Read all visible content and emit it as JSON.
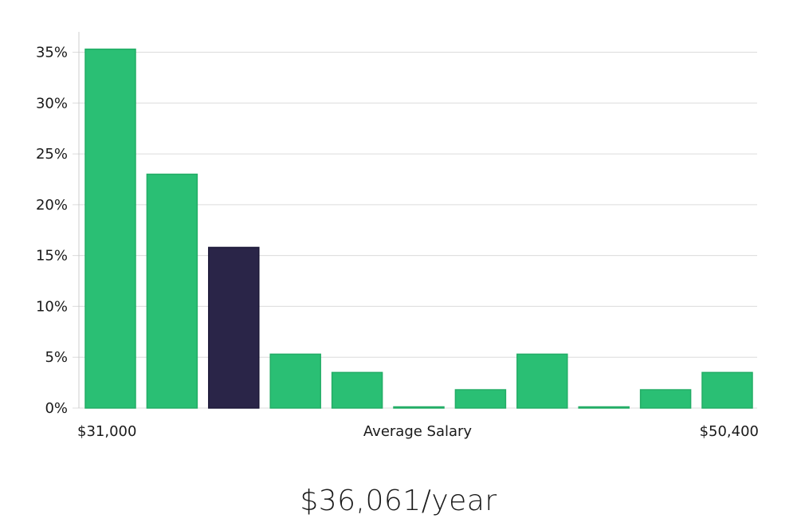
{
  "chart_data": {
    "type": "bar",
    "xlabel": "Average Salary",
    "x_min_label": "$31,000",
    "x_max_label": "$50,400",
    "y_ticks": [
      "0%",
      "5%",
      "10%",
      "15%",
      "20%",
      "25%",
      "30%",
      "35%"
    ],
    "ylim": [
      0,
      37
    ],
    "values": [
      35.3,
      23.0,
      15.8,
      5.3,
      3.5,
      0,
      1.8,
      5.3,
      0,
      1.8,
      3.5
    ],
    "highlight_index": 2,
    "colors": {
      "bar": "#2abf74",
      "highlight": "#2a2548",
      "bar_edge": "#23ad66"
    },
    "grid": true
  },
  "summary": {
    "value": "$36,061/year"
  }
}
